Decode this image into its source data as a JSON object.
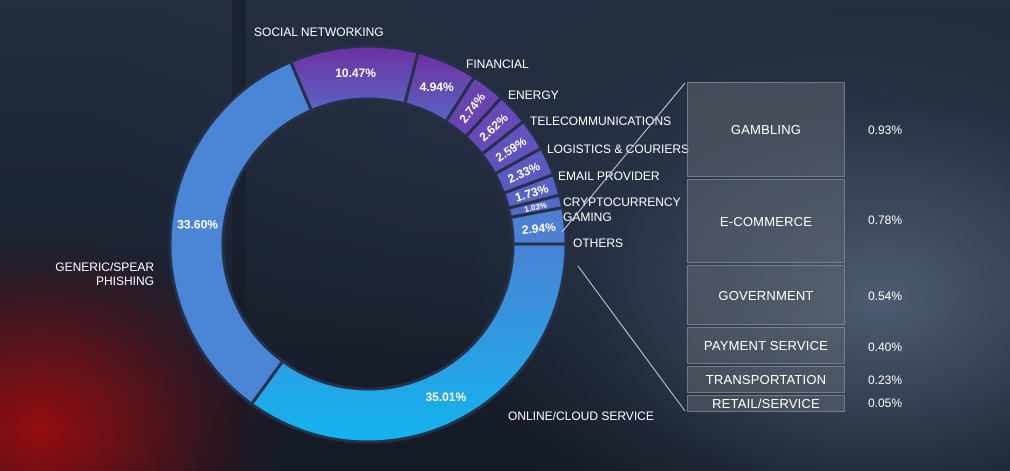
{
  "chart_data": {
    "type": "pie",
    "series": [
      {
        "label": "SOCIAL NETWORKING",
        "value": 10.47,
        "value_text": "10.47%",
        "color": "#6b37a5"
      },
      {
        "label": "FINANCIAL",
        "value": 4.94,
        "value_text": "4.94%",
        "color": "#6c3cac"
      },
      {
        "label": "ENERGY",
        "value": 2.74,
        "value_text": "2.74%",
        "color": "#6a43b3"
      },
      {
        "label": "TELECOMMUNICATIONS",
        "value": 2.62,
        "value_text": "2.62%",
        "color": "#664ab8"
      },
      {
        "label": "LOGISTICS & COURIERS",
        "value": 2.59,
        "value_text": "2.59%",
        "color": "#6152bd"
      },
      {
        "label": "EMAIL PROVIDER",
        "value": 2.33,
        "value_text": "2.33%",
        "color": "#5c5ac1"
      },
      {
        "label": "CRYPTOCURRENCY",
        "value": 1.73,
        "value_text": "1.73%",
        "color": "#5962c5"
      },
      {
        "label": "GAMING",
        "value": 1.03,
        "value_text": "1.03%",
        "color": "#5669c9"
      },
      {
        "label": "OTHERS",
        "value": 2.94,
        "value_text": "2.94%",
        "color": "#4d7fd2"
      },
      {
        "label": "ONLINE/CLOUD SERVICE",
        "value": 35.01,
        "value_text": "35.01%",
        "color": "#2aa7e6"
      },
      {
        "label": "GENERIC/SPEAR\nPHISHING",
        "value": 33.6,
        "value_text": "33.60%",
        "color": "#4b86d6"
      }
    ],
    "others_breakdown": [
      {
        "label": "GAMBLING",
        "value": 0.93,
        "value_text": "0.93%"
      },
      {
        "label": "E-COMMERCE",
        "value": 0.78,
        "value_text": "0.78%"
      },
      {
        "label": "GOVERNMENT",
        "value": 0.54,
        "value_text": "0.54%"
      },
      {
        "label": "PAYMENT SERVICE",
        "value": 0.4,
        "value_text": "0.40%"
      },
      {
        "label": "TRANSPORTATION",
        "value": 0.23,
        "value_text": "0.23%"
      },
      {
        "label": "RETAIL/SERVICE",
        "value": 0.05,
        "value_text": "0.05%"
      }
    ]
  }
}
